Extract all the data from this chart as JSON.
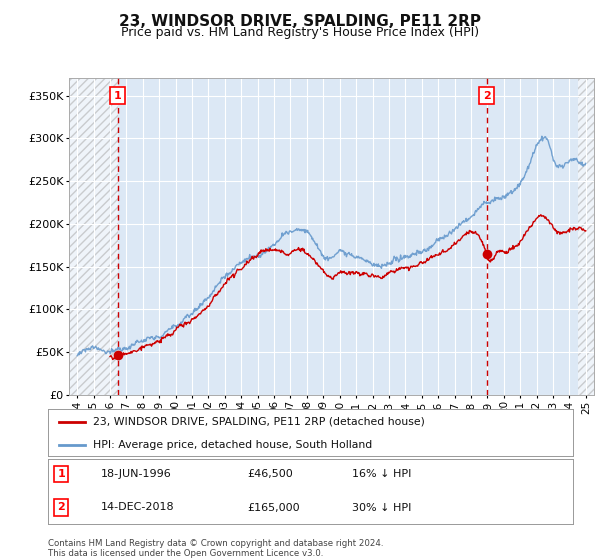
{
  "title": "23, WINDSOR DRIVE, SPALDING, PE11 2RP",
  "subtitle": "Price paid vs. HM Land Registry's House Price Index (HPI)",
  "title_fontsize": 11,
  "subtitle_fontsize": 9,
  "ytick_values": [
    0,
    50000,
    100000,
    150000,
    200000,
    250000,
    300000,
    350000
  ],
  "ylim": [
    0,
    370000
  ],
  "xlim_start": 1993.5,
  "xlim_end": 2025.5,
  "xtick_years": [
    1994,
    1995,
    1996,
    1997,
    1998,
    1999,
    2000,
    2001,
    2002,
    2003,
    2004,
    2005,
    2006,
    2007,
    2008,
    2009,
    2010,
    2011,
    2012,
    2013,
    2014,
    2015,
    2016,
    2017,
    2018,
    2019,
    2020,
    2021,
    2022,
    2023,
    2024,
    2025
  ],
  "background_color": "#ffffff",
  "plot_bg_color": "#dce8f5",
  "grid_color": "#ffffff",
  "hpi_color": "#6699cc",
  "price_color": "#cc0000",
  "vline_color": "#cc0000",
  "marker1_x": 1996.46,
  "marker1_y": 46500,
  "marker2_x": 2018.95,
  "marker2_y": 165000,
  "legend_price_label": "23, WINDSOR DRIVE, SPALDING, PE11 2RP (detached house)",
  "legend_hpi_label": "HPI: Average price, detached house, South Holland",
  "annotation1_date": "18-JUN-1996",
  "annotation1_price": "£46,500",
  "annotation1_hpi": "16% ↓ HPI",
  "annotation2_date": "14-DEC-2018",
  "annotation2_price": "£165,000",
  "annotation2_hpi": "30% ↓ HPI",
  "footer": "Contains HM Land Registry data © Crown copyright and database right 2024.\nThis data is licensed under the Open Government Licence v3.0."
}
